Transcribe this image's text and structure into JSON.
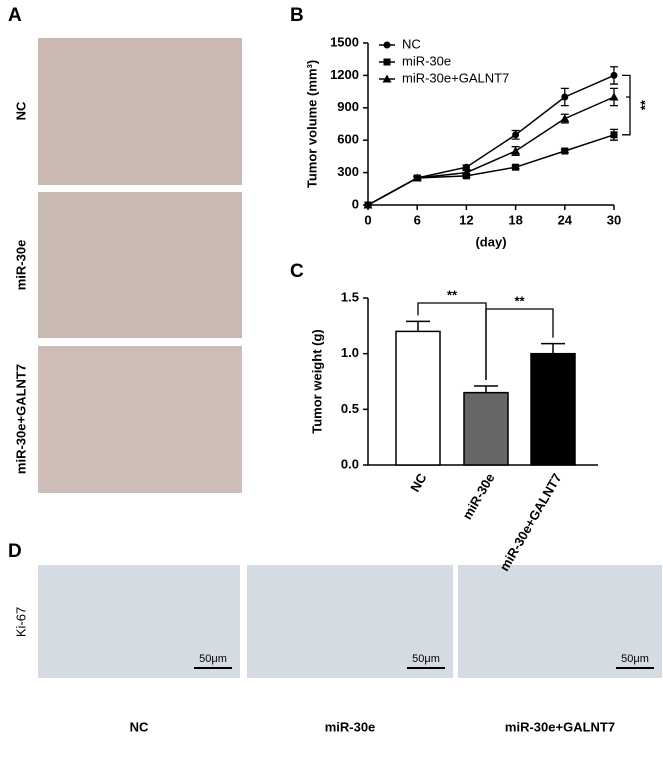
{
  "panel_a": {
    "label": "A",
    "rows": [
      "NC",
      "miR-30e",
      "miR-30e+GALNT7"
    ]
  },
  "panel_d": {
    "label": "D",
    "stain": "Ki-67",
    "scale_bars": [
      "50μm",
      "50μm",
      "50μm"
    ],
    "columns": [
      "NC",
      "miR-30e",
      "miR-30e+GALNT7"
    ]
  },
  "chart_data": [
    {
      "type": "line",
      "panel_label": "B",
      "y_label": "Tumor volume (mm³)",
      "x_label": "(day)",
      "x": [
        0,
        6,
        12,
        18,
        24,
        30
      ],
      "xlim": [
        0,
        30
      ],
      "xticks": [
        0,
        6,
        12,
        18,
        24,
        30
      ],
      "ylim": [
        0,
        1500
      ],
      "yticks": [
        0,
        300,
        600,
        900,
        1200,
        1500
      ],
      "legend": "upper left",
      "series": [
        {
          "name": "NC",
          "color": "#000000",
          "marker": "circle",
          "values": [
            0,
            250,
            350,
            650,
            1000,
            1200
          ],
          "errors": [
            0,
            15,
            20,
            40,
            80,
            80
          ]
        },
        {
          "name": "miR-30e",
          "color": "#000000",
          "marker": "square",
          "values": [
            0,
            250,
            270,
            350,
            500,
            650
          ],
          "errors": [
            0,
            15,
            15,
            15,
            15,
            50
          ]
        },
        {
          "name": "miR-30e+GALNT7",
          "color": "#000000",
          "marker": "triangle",
          "values": [
            0,
            250,
            300,
            500,
            800,
            1000
          ],
          "errors": [
            0,
            15,
            20,
            40,
            40,
            80
          ]
        }
      ],
      "annotation": "**"
    },
    {
      "type": "bar",
      "panel_label": "C",
      "y_label": "Tumor weight (g)",
      "categories": [
        "NC",
        "miR-30e",
        "miR-30e+GALNT7"
      ],
      "values": [
        1.2,
        0.65,
        1.0
      ],
      "errors": [
        0.09,
        0.06,
        0.09
      ],
      "colors": [
        "#ffffff",
        "#666666",
        "#000000"
      ],
      "ylim": [
        0,
        1.5
      ],
      "yticks": [
        {
          "value": 0,
          "label": "0.0"
        },
        {
          "value": 0.5,
          "label": "0.5"
        },
        {
          "value": 1,
          "label": "1.0"
        },
        {
          "value": 1.5,
          "label": "1.5"
        }
      ],
      "annotations": [
        "**",
        "**"
      ]
    }
  ]
}
